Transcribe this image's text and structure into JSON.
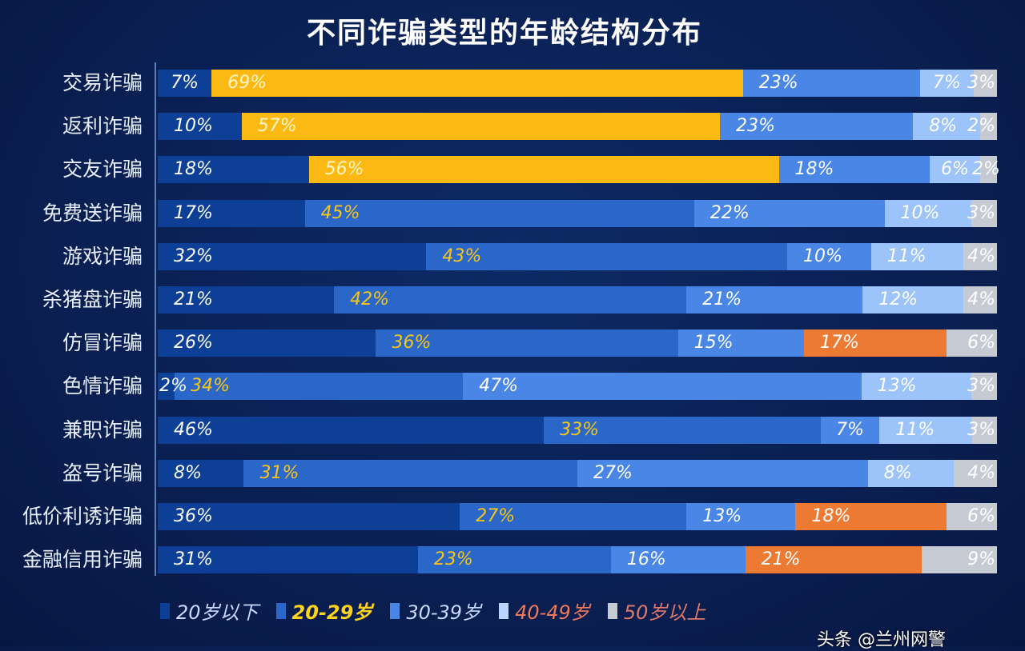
{
  "chart_data": {
    "type": "bar",
    "orientation": "horizontal",
    "stacked": true,
    "title": "不同诈骗类型的年龄结构分布",
    "categories": [
      "交易诈骗",
      "返利诈骗",
      "交友诈骗",
      "免费送诈骗",
      "游戏诈骗",
      "杀猪盘诈骗",
      "仿冒诈骗",
      "色情诈骗",
      "兼职诈骗",
      "盗号诈骗",
      "低价利诱诈骗",
      "金融信用诈骗"
    ],
    "series": [
      {
        "name": "20岁以下",
        "values": [
          7,
          10,
          18,
          17,
          32,
          21,
          26,
          2,
          46,
          8,
          36,
          31
        ]
      },
      {
        "name": "20-29岁",
        "values": [
          69,
          57,
          56,
          45,
          43,
          42,
          36,
          34,
          33,
          31,
          27,
          23
        ]
      },
      {
        "name": "30-39岁",
        "values": [
          23,
          23,
          18,
          22,
          10,
          21,
          15,
          47,
          7,
          27,
          13,
          16
        ]
      },
      {
        "name": "40-49岁",
        "values": [
          7,
          8,
          6,
          10,
          11,
          12,
          17,
          13,
          11,
          8,
          18,
          21
        ]
      },
      {
        "name": "50岁以上",
        "values": [
          3,
          2,
          2,
          3,
          4,
          4,
          6,
          3,
          3,
          4,
          6,
          9
        ]
      }
    ],
    "unit": "%",
    "legend": "bottom",
    "grid": false,
    "colors": {
      "s1": "#0c3f95",
      "s2": "#2b67c9",
      "s2_highlight": "#fdb913",
      "s3": "#4a86e6",
      "s4": "#9dc4fa",
      "s4_highlight": "#ec7a33",
      "s5": "#c6cad2"
    },
    "legend_text_colors": [
      "#c9d9ff",
      "#ffd21c",
      "#c9d9ff",
      "#f0795a",
      "#e0786a"
    ],
    "highlight_s2_rows": [
      0,
      1,
      2
    ],
    "highlight_s4_rows": [
      6,
      10,
      11
    ]
  },
  "watermark": "头条 @兰州网警"
}
